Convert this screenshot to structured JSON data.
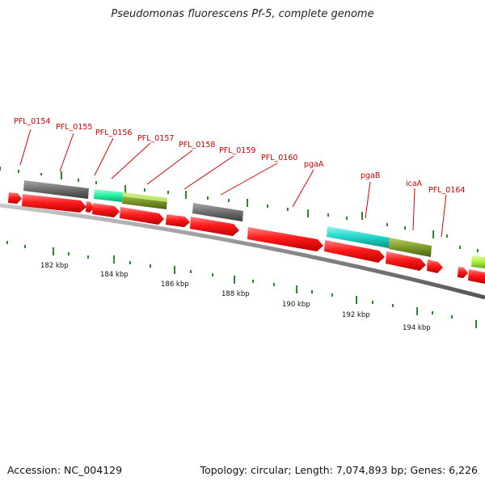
{
  "title": "Pseudomonas fluorescens Pf-5, complete genome",
  "footer": {
    "accession": "Accession: NC_004129",
    "summary": "Topology: circular; Length: 7,074,893 bp; Genes: 6,226"
  },
  "colors": {
    "cds": "#ff1a1a",
    "backbone": "#8a8a8a",
    "tick": "#2a8a2a",
    "label": "#cc0000",
    "gray_feature": "#6e6e6e",
    "teal_feature": "#21d6c8",
    "mint_feature": "#22f0a0",
    "olive_feature": "#7d9a2a",
    "lime_feature": "#a8f03c"
  },
  "gene_labels": [
    "PFL_0154",
    "PFL_0155",
    "PFL_0156",
    "PFL_0157",
    "PFL_0158",
    "PFL_0159",
    "PFL_0160",
    "pgaA",
    "pgaB",
    "icaA",
    "PFL_0164"
  ],
  "kbp_labels": [
    "182 kbp",
    "184 kbp",
    "186 kbp",
    "188 kbp",
    "190 kbp",
    "192 kbp",
    "194 kbp"
  ]
}
